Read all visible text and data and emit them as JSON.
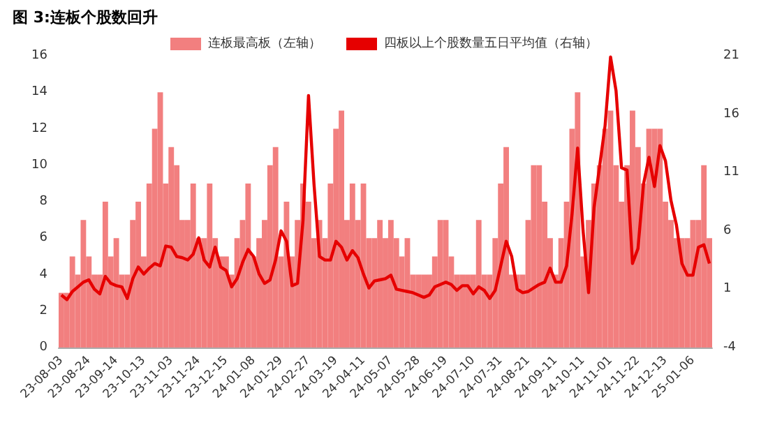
{
  "chart_data": {
    "type": "bar",
    "title": "图 3:连板个股数回升",
    "categories": [
      "23-08-03",
      null,
      null,
      null,
      null,
      "23-08-24",
      null,
      null,
      null,
      null,
      "23-09-14",
      null,
      null,
      null,
      null,
      "23-10-13",
      null,
      null,
      null,
      null,
      "23-11-03",
      null,
      null,
      null,
      null,
      "23-11-24",
      null,
      null,
      null,
      null,
      "23-12-15",
      null,
      null,
      null,
      null,
      "24-01-08",
      null,
      null,
      null,
      null,
      "24-01-29",
      null,
      null,
      null,
      null,
      "24-02-27",
      null,
      null,
      null,
      null,
      "24-03-19",
      null,
      null,
      null,
      null,
      "24-04-11",
      null,
      null,
      null,
      null,
      "24-05-07",
      null,
      null,
      null,
      null,
      "24-05-28",
      null,
      null,
      null,
      null,
      "24-06-19",
      null,
      null,
      null,
      null,
      "24-07-10",
      null,
      null,
      null,
      null,
      "24-07-31",
      null,
      null,
      null,
      null,
      "24-08-21",
      null,
      null,
      null,
      null,
      "24-09-11",
      null,
      null,
      null,
      null,
      "24-10-11",
      null,
      null,
      null,
      null,
      "24-11-01",
      null,
      null,
      null,
      null,
      "24-11-22",
      null,
      null,
      null,
      null,
      "24-12-13",
      null,
      null,
      null,
      null,
      "25-01-06",
      null,
      null,
      null
    ],
    "series": [
      {
        "name": "连板最高板（左轴）",
        "color": "#f27f7f",
        "values": [
          3,
          3,
          5,
          4,
          7,
          5,
          4,
          4,
          8,
          5,
          6,
          4,
          4,
          7,
          8,
          5,
          9,
          12,
          14,
          9,
          11,
          10,
          7,
          7,
          9,
          6,
          6,
          9,
          6,
          5,
          5,
          4,
          6,
          7,
          9,
          5,
          6,
          7,
          10,
          11,
          5,
          8,
          5,
          7,
          9,
          8,
          6,
          7,
          6,
          9,
          12,
          13,
          7,
          9,
          7,
          9,
          6,
          6,
          7,
          6,
          7,
          6,
          5,
          6,
          4,
          4,
          4,
          4,
          5,
          7,
          7,
          5,
          4,
          4,
          4,
          4,
          7,
          4,
          4,
          6,
          9,
          11,
          4,
          4,
          4,
          7,
          10,
          10,
          8,
          6,
          4,
          6,
          8,
          12,
          14,
          5,
          7,
          9,
          10,
          12,
          13,
          10,
          8,
          10,
          13,
          11,
          9,
          12,
          12,
          12,
          8,
          7,
          6,
          6,
          6,
          7,
          7,
          10,
          6
        ]
      },
      {
        "name": "四板以上个股数量五日平均值（右轴）",
        "type": "line",
        "axis": "y2",
        "color": "#e60000",
        "values": [
          0.5,
          0.1,
          0.8,
          1.2,
          1.6,
          1.8,
          1.0,
          0.6,
          2.1,
          1.5,
          1.3,
          1.2,
          0.2,
          1.9,
          2.9,
          2.3,
          2.8,
          3.2,
          3.0,
          4.7,
          4.6,
          3.8,
          3.7,
          3.5,
          4.0,
          5.4,
          3.5,
          2.9,
          4.6,
          2.9,
          2.6,
          1.2,
          1.9,
          3.3,
          4.4,
          3.8,
          2.3,
          1.5,
          1.8,
          3.5,
          6.0,
          5.1,
          1.3,
          1.5,
          6.9,
          17.6,
          10.0,
          3.8,
          3.5,
          3.5,
          5.1,
          4.6,
          3.5,
          4.3,
          3.7,
          2.3,
          1.1,
          1.7,
          1.8,
          1.9,
          2.2,
          1.0,
          0.9,
          0.8,
          0.7,
          0.5,
          0.3,
          0.5,
          1.2,
          1.4,
          1.6,
          1.4,
          0.9,
          1.3,
          1.3,
          0.6,
          1.2,
          0.9,
          0.2,
          0.9,
          3.0,
          5.1,
          3.8,
          1.0,
          0.7,
          0.8,
          1.1,
          1.4,
          1.6,
          2.8,
          1.6,
          1.6,
          3.0,
          7.5,
          13.1,
          6.0,
          0.7,
          8.0,
          11.5,
          15.0,
          20.9,
          18.0,
          11.4,
          11.2,
          3.2,
          4.5,
          10.0,
          12.3,
          9.8,
          13.3,
          12.0,
          8.6,
          6.5,
          3.2,
          2.2,
          2.2,
          4.6,
          4.8,
          3.2
        ]
      }
    ],
    "ylim": [
      0,
      16
    ],
    "yticks": [
      0,
      2,
      4,
      6,
      8,
      10,
      12,
      14,
      16
    ],
    "y2lim": [
      -4,
      21
    ],
    "y2ticks": [
      -4,
      1,
      6,
      11,
      16,
      21
    ],
    "legend": "top",
    "grid": false,
    "marker": "none",
    "line_style": "solid"
  }
}
